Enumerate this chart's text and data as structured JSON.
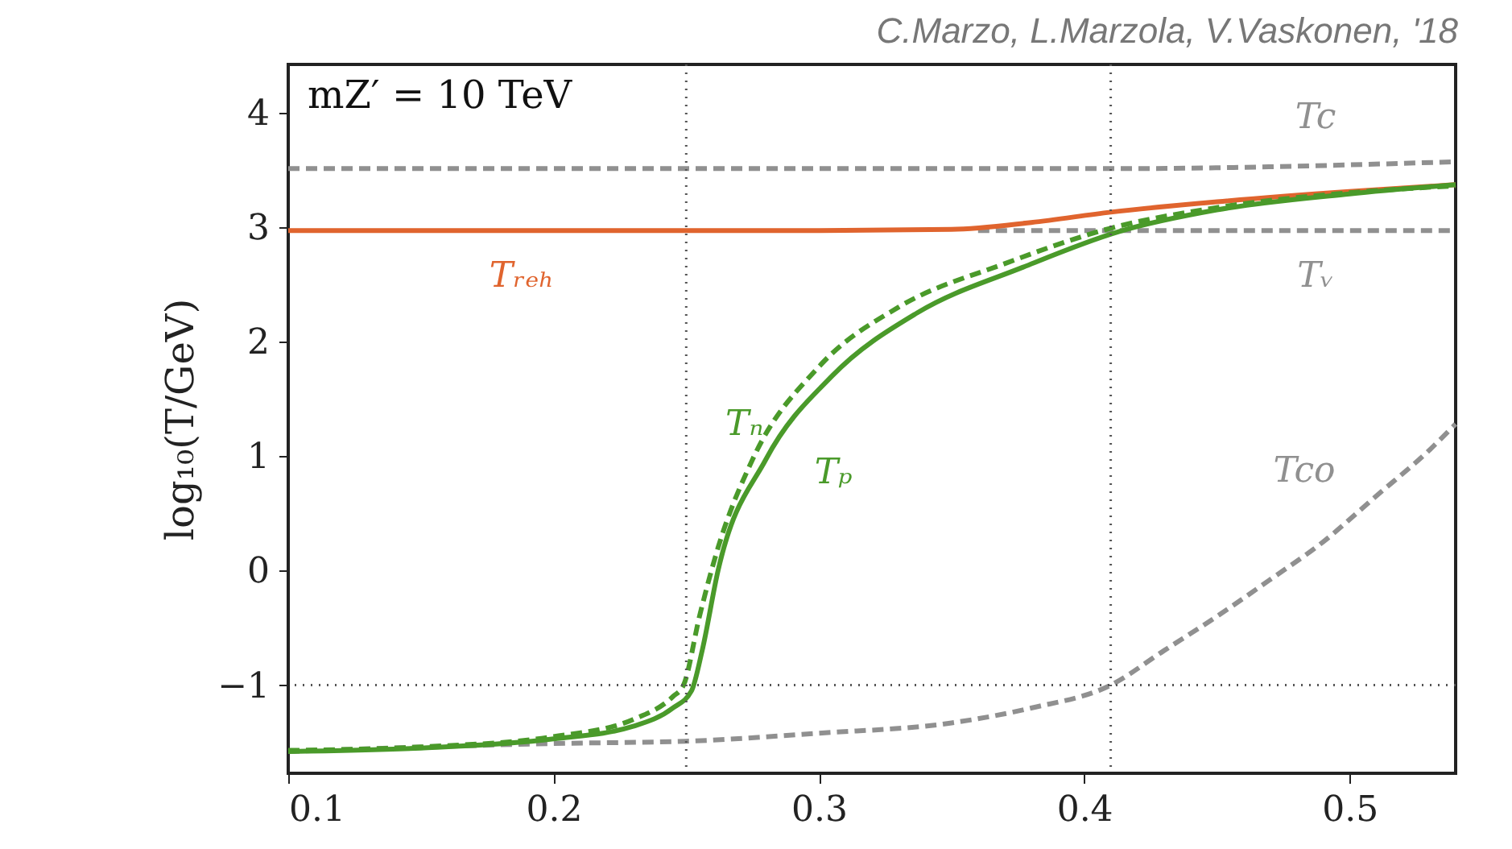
{
  "chart_data": {
    "type": "line",
    "xlim": [
      0.1,
      0.54
    ],
    "ylim": [
      -1.77,
      4.42
    ],
    "xticks": [
      0.1,
      0.2,
      0.3,
      0.4,
      0.5
    ],
    "yticks": [
      -1,
      0,
      1,
      2,
      3,
      4
    ],
    "ylabel": "log₁₀(T/GeV)",
    "grid": false,
    "marker": "none",
    "ref_lines": [
      {
        "axis": "x",
        "value": 0.25,
        "line_style": "dotted",
        "color": "#555555"
      },
      {
        "axis": "x",
        "value": 0.41,
        "line_style": "dotted",
        "color": "#555555"
      },
      {
        "axis": "y",
        "value": -1,
        "line_style": "dotted",
        "color": "#555555"
      }
    ],
    "series": [
      {
        "name": "Tc",
        "color": "#909090",
        "line_style": "dashed",
        "x": [
          0.1,
          0.41,
          0.54
        ],
        "values": [
          3.51,
          3.51,
          3.57
        ]
      },
      {
        "name": "Tᵥ",
        "color": "#909090",
        "line_style": "dashed",
        "x": [
          0.36,
          0.54
        ],
        "values": [
          2.97,
          2.97
        ]
      },
      {
        "name": "Tᵣₑₕ",
        "color": "#e0642e",
        "line_style": "solid",
        "x": [
          0.1,
          0.3,
          0.35,
          0.38,
          0.41,
          0.45,
          0.5,
          0.54
        ],
        "values": [
          2.97,
          2.97,
          2.98,
          3.04,
          3.13,
          3.22,
          3.31,
          3.37
        ]
      },
      {
        "name": "Tco",
        "color": "#909090",
        "line_style": "dashed",
        "x": [
          0.1,
          0.2,
          0.25,
          0.3,
          0.35,
          0.38,
          0.41,
          0.43,
          0.45,
          0.47,
          0.49,
          0.51,
          0.53,
          0.54
        ],
        "values": [
          -1.58,
          -1.51,
          -1.49,
          -1.42,
          -1.33,
          -1.2,
          -1.0,
          -0.7,
          -0.4,
          -0.08,
          0.25,
          0.65,
          1.05,
          1.28
        ]
      },
      {
        "name": "Tₙ",
        "color": "#4a9a2a",
        "line_style": "dashed",
        "x": [
          0.1,
          0.15,
          0.2,
          0.23,
          0.245,
          0.249,
          0.255,
          0.262,
          0.275,
          0.3,
          0.33,
          0.37,
          0.41,
          0.45,
          0.5,
          0.54
        ],
        "values": [
          -1.57,
          -1.54,
          -1.45,
          -1.3,
          -1.1,
          -1.0,
          -0.4,
          0.2,
          0.97,
          1.78,
          2.3,
          2.68,
          2.99,
          3.17,
          3.3,
          3.36
        ]
      },
      {
        "name": "Tₚ",
        "color": "#4a9a2a",
        "line_style": "solid",
        "x": [
          0.1,
          0.15,
          0.2,
          0.23,
          0.245,
          0.252,
          0.256,
          0.262,
          0.28,
          0.305,
          0.337,
          0.377,
          0.413,
          0.45,
          0.5,
          0.54
        ],
        "values": [
          -1.58,
          -1.55,
          -1.47,
          -1.36,
          -1.2,
          -1.05,
          -0.7,
          0.0,
          0.97,
          1.7,
          2.25,
          2.65,
          2.96,
          3.15,
          3.29,
          3.37
        ]
      }
    ],
    "annotations": [
      "C.Marzo, L.Marzola, V.Vaskonen, '18",
      "mZ′ = 10 TeV"
    ]
  }
}
